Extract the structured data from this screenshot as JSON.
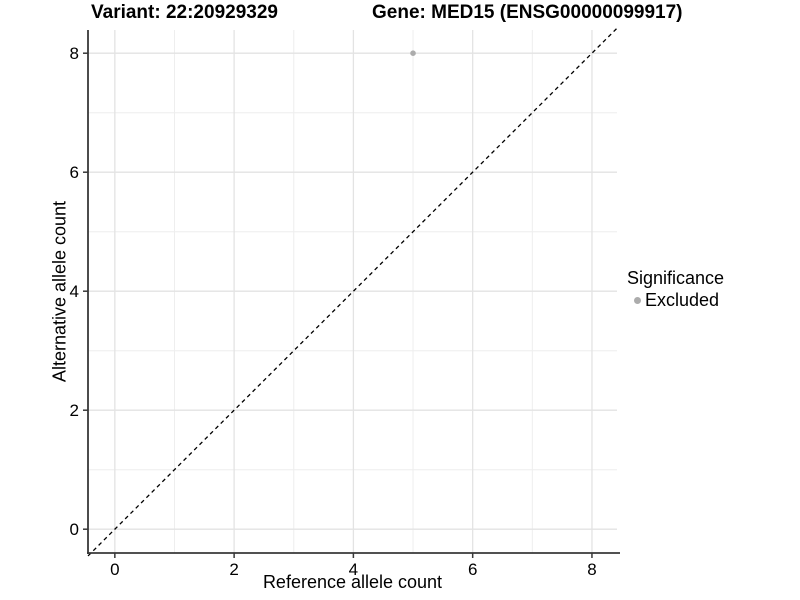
{
  "figure": {
    "title_left": "Variant: 22:20929329",
    "title_right": "Gene: MED15 (ENSG00000099917)"
  },
  "chart_data": {
    "type": "scatter",
    "title": "Variant: 22:20929329   Gene: MED15 (ENSG00000099917)",
    "xlabel": "Reference allele count",
    "ylabel": "Alternative allele count",
    "xlim": [
      -0.45,
      8.42
    ],
    "ylim": [
      -0.4,
      8.39
    ],
    "xticks": [
      0,
      2,
      4,
      6,
      8
    ],
    "yticks": [
      0,
      2,
      4,
      6,
      8
    ],
    "xminor": [
      1,
      3,
      5,
      7
    ],
    "yminor": [
      1,
      3,
      5,
      7
    ],
    "grid": "on",
    "series": [
      {
        "name": "Excluded",
        "color": "#acacac",
        "marker": "circle",
        "points": [
          {
            "x": 5,
            "y": 8
          }
        ]
      }
    ],
    "reference_line": {
      "kind": "identity",
      "slope": 1,
      "intercept": 0,
      "line_style": "dashed",
      "color": "#000000"
    },
    "legend": {
      "title": "Significance",
      "position": "right",
      "items": [
        {
          "label": "Excluded",
          "color": "#acacac",
          "marker": "circle"
        }
      ]
    }
  },
  "colors": {
    "background": "#ffffff",
    "axis_line": "#383838",
    "grid_major": "#e3e3e3",
    "grid_minor": "#eeeeee",
    "tick_text": "#000000",
    "point": "#acacac"
  }
}
